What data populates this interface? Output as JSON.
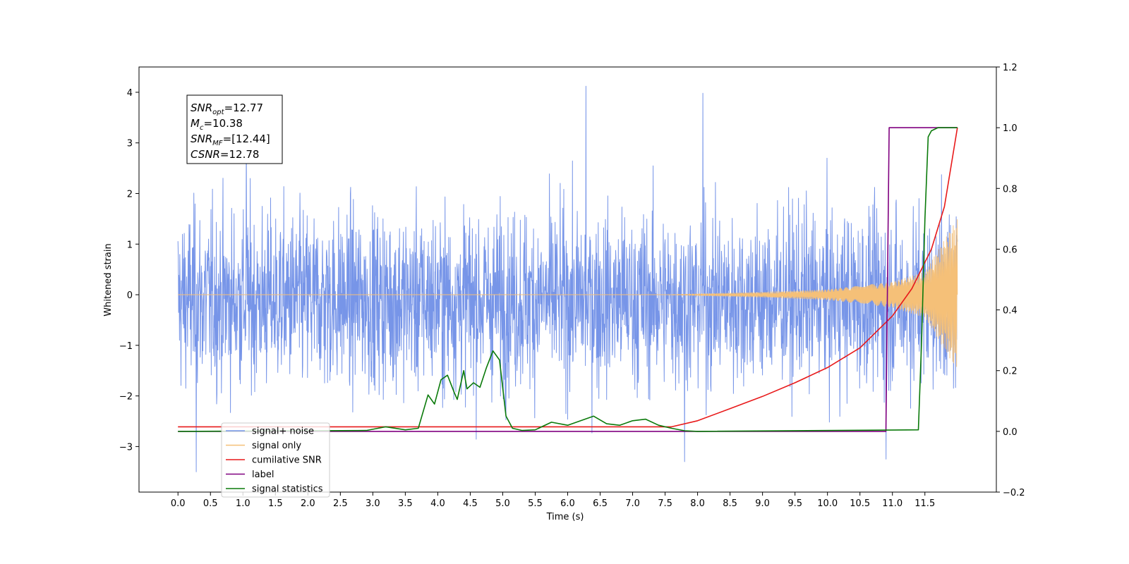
{
  "chart_data": {
    "type": "line",
    "title": "",
    "xlabel": "Time (s)",
    "ylabel": "Whitened strain",
    "xlim": [
      -0.6,
      12.6
    ],
    "ylim": [
      -3.9,
      4.5
    ],
    "y2lim": [
      -0.2,
      1.2
    ],
    "x_ticks": [
      "0.0",
      "0.5",
      "1.0",
      "1.5",
      "2.0",
      "2.5",
      "3.0",
      "3.5",
      "4.0",
      "4.5",
      "5.0",
      "5.5",
      "6.0",
      "6.5",
      "7.0",
      "7.5",
      "8.0",
      "8.5",
      "9.0",
      "9.5",
      "10.0",
      "10.5",
      "11.0",
      "11.5"
    ],
    "x_tick_values": [
      0,
      0.5,
      1,
      1.5,
      2,
      2.5,
      3,
      3.5,
      4,
      4.5,
      5,
      5.5,
      6,
      6.5,
      7,
      7.5,
      8,
      8.5,
      9,
      9.5,
      10,
      10.5,
      11,
      11.5
    ],
    "y_ticks": [
      "−3",
      "−2",
      "−1",
      "0",
      "1",
      "2",
      "3",
      "4"
    ],
    "y_tick_values": [
      -3,
      -2,
      -1,
      0,
      1,
      2,
      3,
      4
    ],
    "y2_ticks": [
      "−0.2",
      "0.0",
      "0.2",
      "0.4",
      "0.6",
      "0.8",
      "1.0",
      "1.2"
    ],
    "y2_tick_values": [
      -0.2,
      0,
      0.2,
      0.4,
      0.6,
      0.8,
      1.0,
      1.2
    ],
    "grid": false,
    "legend_position": "lower-left",
    "annotation": {
      "lines": [
        {
          "base": "SNR",
          "sub": "opt",
          "rest": "=12.77"
        },
        {
          "base": "M",
          "sub": "c",
          "rest": "=10.38"
        },
        {
          "base": "SNR",
          "sub": "MF",
          "rest": "=[12.44]"
        },
        {
          "base": "CSNR",
          "sub": "",
          "rest": "=12.78"
        }
      ]
    },
    "series": [
      {
        "name": "signal+ noise",
        "color": "#7795e8",
        "axis": "left",
        "noise": {
          "x_start": 0.0,
          "x_end": 12.0,
          "mean": -0.1,
          "envelope": 1.5,
          "peak_max": 4.12,
          "peak_min": -3.5
        }
      },
      {
        "name": "signal only",
        "color": "#f5c078",
        "axis": "left",
        "chirp": {
          "x_start": 0.0,
          "x_end": 12.0,
          "grow_from": 7.5,
          "amp_at": [
            [
              7.5,
              0.0
            ],
            [
              9.0,
              0.05
            ],
            [
              10.0,
              0.1
            ],
            [
              11.0,
              0.25
            ],
            [
              11.5,
              0.45
            ],
            [
              12.0,
              1.5
            ]
          ]
        }
      },
      {
        "name": "cumilative SNR",
        "color": "#e8191a",
        "axis": "right",
        "x": [
          0.0,
          7.6,
          8.0,
          8.5,
          9.0,
          9.5,
          10.0,
          10.5,
          11.0,
          11.3,
          11.6,
          11.8,
          12.0
        ],
        "y": [
          0.015,
          0.015,
          0.035,
          0.075,
          0.115,
          0.16,
          0.21,
          0.275,
          0.38,
          0.47,
          0.6,
          0.74,
          1.0
        ]
      },
      {
        "name": "label",
        "color": "#800080",
        "axis": "right",
        "x": [
          0.0,
          10.9,
          10.95,
          12.0
        ],
        "y": [
          0.0,
          0.0,
          1.0,
          1.0
        ]
      },
      {
        "name": "signal statistics",
        "color": "#0a7a0a",
        "axis": "right",
        "x": [
          0.0,
          2.9,
          3.2,
          3.5,
          3.7,
          3.85,
          3.95,
          4.05,
          4.15,
          4.25,
          4.3,
          4.4,
          4.45,
          4.55,
          4.65,
          4.75,
          4.85,
          4.95,
          5.05,
          5.15,
          5.3,
          5.5,
          5.75,
          6.0,
          6.2,
          6.4,
          6.6,
          6.8,
          7.0,
          7.2,
          7.4,
          7.6,
          7.8,
          8.0,
          11.4,
          11.45,
          11.5,
          11.55,
          11.6,
          11.7,
          12.0
        ],
        "y": [
          0.0,
          0.003,
          0.015,
          0.005,
          0.01,
          0.12,
          0.09,
          0.17,
          0.185,
          0.13,
          0.105,
          0.2,
          0.14,
          0.16,
          0.145,
          0.21,
          0.265,
          0.235,
          0.05,
          0.01,
          0.003,
          0.005,
          0.03,
          0.02,
          0.035,
          0.05,
          0.025,
          0.02,
          0.035,
          0.04,
          0.02,
          0.01,
          0.002,
          0.0,
          0.005,
          0.3,
          0.7,
          0.97,
          0.99,
          1.0,
          1.0
        ]
      }
    ],
    "legend": [
      {
        "label": "signal+ noise",
        "color": "#7795e8"
      },
      {
        "label": "signal only",
        "color": "#f5c078"
      },
      {
        "label": "cumilative SNR",
        "color": "#e8191a"
      },
      {
        "label": "label",
        "color": "#800080"
      },
      {
        "label": "signal statistics",
        "color": "#0a7a0a"
      }
    ]
  }
}
